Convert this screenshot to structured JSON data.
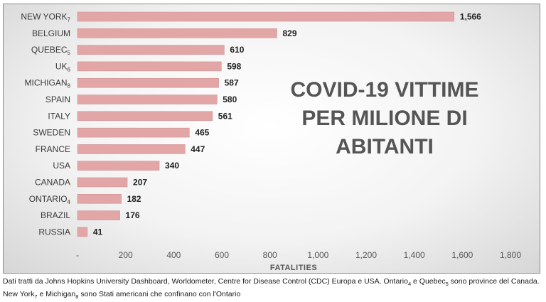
{
  "chart_data": {
    "type": "bar",
    "orientation": "horizontal",
    "title_lines": [
      "COVID-19 VITTIME",
      "PER MILIONE DI",
      "ABITANTI"
    ],
    "xlabel": "FATALITIES",
    "xlim": [
      0,
      1800
    ],
    "xticks": [
      "-",
      "200",
      "400",
      "600",
      "800",
      "1,000",
      "1,200",
      "1,400",
      "1,600",
      "1,800"
    ],
    "bar_color": "#e3a6a6",
    "categories": [
      {
        "name": "NEW YORK",
        "sub": "7"
      },
      {
        "name": "BELGIUM",
        "sub": ""
      },
      {
        "name": "QUEBEC",
        "sub": "5"
      },
      {
        "name": "UK",
        "sub": "6"
      },
      {
        "name": "MICHIGAN",
        "sub": "8"
      },
      {
        "name": "SPAIN",
        "sub": ""
      },
      {
        "name": "ITALY",
        "sub": ""
      },
      {
        "name": "SWEDEN",
        "sub": ""
      },
      {
        "name": "FRANCE",
        "sub": ""
      },
      {
        "name": "USA",
        "sub": ""
      },
      {
        "name": "CANADA",
        "sub": ""
      },
      {
        "name": "ONTARIO",
        "sub": "4"
      },
      {
        "name": "BRAZIL",
        "sub": ""
      },
      {
        "name": "RUSSIA",
        "sub": ""
      }
    ],
    "values": [
      1566,
      829,
      610,
      598,
      587,
      580,
      561,
      465,
      447,
      340,
      207,
      182,
      176,
      41
    ],
    "value_labels": [
      "1,566",
      "829",
      "610",
      "598",
      "587",
      "580",
      "561",
      "465",
      "447",
      "340",
      "207",
      "182",
      "176",
      "41"
    ],
    "grid": false,
    "legend": "none"
  },
  "caption": {
    "line1_a": "Dati tratti  da Johns Hopkins University Dashboard, Worldometer, Centre for Disease Control (CDC) Europa e USA. Ontario",
    "line1_sub1": "4",
    "line1_b": " e Quebec",
    "line1_sub2": "5",
    "line1_c": " sono province del Canada.",
    "line2_a": "New York",
    "line2_sub1": "7",
    "line2_b": " e Michigan",
    "line2_sub2": "8",
    "line2_c": " sono Stati americani che confinano con l'Ontario"
  }
}
